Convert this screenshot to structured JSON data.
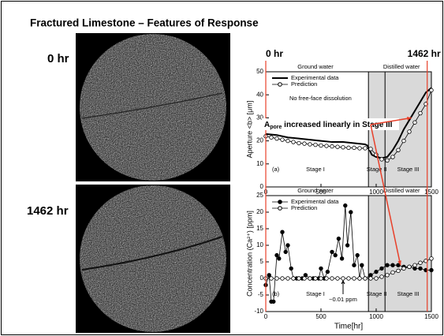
{
  "slide": {
    "title": "Fractured Limestone – Features of Response",
    "image_labels": [
      "0 hr",
      "1462 hr"
    ],
    "annotation": {
      "main": "A",
      "sub": "pore",
      "rest": " increased linearly in Stage III"
    }
  },
  "chart_data": [
    {
      "type": "line",
      "ylabel": "Aperture <b> [μm]",
      "panel": "(a)",
      "note": "No free-face dissolution",
      "regions": [
        "Ground water",
        "Distilled water"
      ],
      "stages": [
        "Stage I",
        "Stage II",
        "Stage III"
      ],
      "markers": [
        {
          "x": 0,
          "label": "0 hr"
        },
        {
          "x": 1462,
          "label": "1462 hr"
        }
      ],
      "shaded_span": [
        930,
        1500
      ],
      "stage_line": 1080,
      "xlim": [
        0,
        1500
      ],
      "xticks": [
        0,
        500,
        1000,
        1500
      ],
      "ylim": [
        0,
        50
      ],
      "yticks": [
        0,
        10,
        20,
        30,
        40,
        50
      ],
      "series": [
        {
          "name": "Experimental data",
          "color": "#000000",
          "marker": "none",
          "x": [
            0,
            100,
            200,
            300,
            400,
            500,
            600,
            700,
            800,
            900,
            920,
            940,
            960,
            1000,
            1050,
            1100,
            1150,
            1200,
            1250,
            1300,
            1350,
            1400,
            1450,
            1500
          ],
          "values": [
            23,
            22.5,
            21.5,
            21,
            20.5,
            20,
            19.5,
            19.5,
            19,
            18.5,
            18,
            16,
            14,
            13,
            12.5,
            13,
            16,
            20,
            25,
            29,
            33,
            37,
            41,
            43
          ]
        },
        {
          "name": "Prediction",
          "color": "#000000",
          "marker": "open",
          "x": [
            0,
            50,
            100,
            150,
            200,
            250,
            300,
            350,
            400,
            450,
            500,
            550,
            600,
            650,
            700,
            750,
            800,
            850,
            900,
            950,
            1000,
            1050,
            1100,
            1150,
            1200,
            1250,
            1300,
            1350,
            1400,
            1450,
            1500
          ],
          "values": [
            22,
            21.5,
            21,
            20.5,
            20,
            19.5,
            19,
            18.8,
            18.5,
            18.3,
            18,
            17.8,
            17.6,
            17.4,
            17.2,
            17,
            17,
            16.8,
            16.8,
            16.5,
            14,
            12,
            11.5,
            13,
            16,
            20,
            24,
            28,
            32,
            36,
            42
          ]
        }
      ]
    },
    {
      "type": "line",
      "ylabel": "Concentration (Ca²⁺) [ppm]",
      "xlabel": "Time[hr]",
      "panel": "(b)",
      "note": "~0.01 ppm",
      "regions": [
        "Ground water",
        "Distilled water"
      ],
      "stages": [
        "Stage I",
        "Stage II",
        "Stage III"
      ],
      "shaded_span": [
        930,
        1500
      ],
      "stage_line": 1080,
      "xlim": [
        0,
        1500
      ],
      "xticks": [
        0,
        500,
        1000,
        1500
      ],
      "ylim": [
        -10,
        25
      ],
      "yticks": [
        -10,
        -5,
        0,
        5,
        10,
        15,
        20,
        25
      ],
      "series": [
        {
          "name": "Experimental data",
          "color": "#000000",
          "marker": "filled",
          "x": [
            0,
            30,
            50,
            70,
            100,
            120,
            150,
            180,
            200,
            230,
            250,
            280,
            300,
            330,
            360,
            400,
            430,
            450,
            480,
            500,
            530,
            560,
            600,
            630,
            660,
            690,
            720,
            740,
            770,
            800,
            830,
            850,
            870,
            900,
            950,
            1000,
            1050,
            1100,
            1150,
            1200,
            1250,
            1300,
            1350,
            1400,
            1450,
            1500
          ],
          "values": [
            -2,
            1,
            -7,
            -7,
            7,
            6,
            14,
            8,
            10,
            3,
            0,
            0,
            0,
            0,
            1,
            0,
            0,
            0,
            0,
            3,
            0,
            2,
            8,
            7,
            12,
            6,
            22,
            10,
            20,
            4,
            7,
            0,
            4,
            0,
            1,
            2,
            3,
            4,
            4,
            4,
            3.5,
            3.5,
            3,
            3,
            2.5,
            2.5
          ]
        },
        {
          "name": "Prediction",
          "color": "#000000",
          "marker": "open",
          "x": [
            0,
            50,
            100,
            150,
            200,
            250,
            300,
            350,
            400,
            450,
            500,
            550,
            600,
            650,
            700,
            750,
            800,
            850,
            900,
            950,
            1000,
            1050,
            1100,
            1150,
            1200,
            1250,
            1300,
            1350,
            1400,
            1450,
            1500
          ],
          "values": [
            0,
            0,
            0,
            0,
            0,
            0,
            0,
            0,
            0,
            0,
            0,
            0,
            0,
            0,
            0,
            0,
            0,
            0,
            0,
            0,
            0,
            0.5,
            1,
            1.8,
            2.3,
            3,
            3.5,
            4,
            4.7,
            5.3,
            6
          ]
        }
      ]
    }
  ]
}
